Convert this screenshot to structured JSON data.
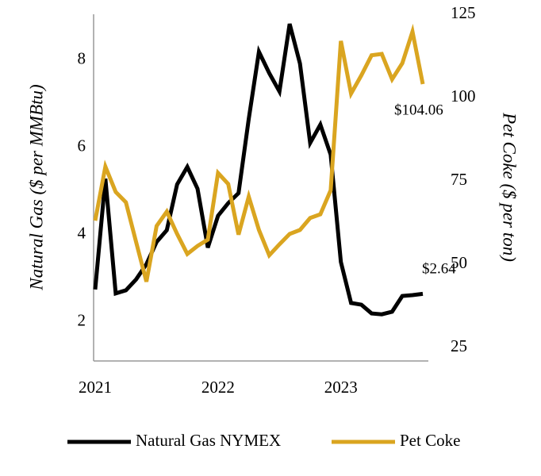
{
  "chart_data": {
    "type": "line",
    "y_label": "Natural Gas ($ per MMBtu)",
    "y2_label": "Pet Coke ($ per ton)",
    "x": [
      2021,
      2021.083,
      2021.167,
      2021.25,
      2021.333,
      2021.417,
      2021.5,
      2021.583,
      2021.667,
      2021.75,
      2021.833,
      2021.917,
      2022,
      2022.083,
      2022.167,
      2022.25,
      2022.333,
      2022.417,
      2022.5,
      2022.583,
      2022.667,
      2022.75,
      2022.833,
      2022.917,
      2023,
      2023.083,
      2023.167,
      2023.25,
      2023.333,
      2023.417,
      2023.5,
      2023.583,
      2023.667
    ],
    "series": [
      {
        "name": "Natural Gas NYMEX",
        "color": "#000000",
        "values": [
          2.74,
          5.28,
          2.65,
          2.72,
          2.97,
          3.32,
          3.83,
          4.1,
          5.15,
          5.55,
          5.05,
          3.7,
          4.43,
          4.72,
          4.95,
          6.65,
          8.19,
          7.7,
          7.28,
          8.83,
          7.92,
          6.1,
          6.52,
          5.83,
          3.37,
          2.43,
          2.39,
          2.19,
          2.17,
          2.23,
          2.59,
          2.61,
          2.64
        ]
      },
      {
        "name": "Pet Coke",
        "color": "#DAA520",
        "axis": "y2",
        "values": [
          63.1,
          79.3,
          71.7,
          68.6,
          56.7,
          44.8,
          61.5,
          65.8,
          59.1,
          53.1,
          55.5,
          57.4,
          77.4,
          74.1,
          58.9,
          70.3,
          60.3,
          52.7,
          56,
          59.1,
          60.3,
          63.9,
          65,
          72.2,
          117,
          101.2,
          106.7,
          112.7,
          113.1,
          105.5,
          110.3,
          119.8,
          104.06
        ]
      }
    ],
    "annotations": [
      "$2.64",
      "$104.06"
    ],
    "xlim": [
      2021,
      2023.667
    ],
    "xticks": [
      2021,
      2022,
      2023
    ],
    "ylim": [
      1.1,
      9.05
    ],
    "yticks": [
      2,
      4,
      6,
      8
    ],
    "y2lim": [
      21,
      125
    ],
    "y2ticks": [
      25,
      50,
      75,
      100,
      125
    ]
  }
}
